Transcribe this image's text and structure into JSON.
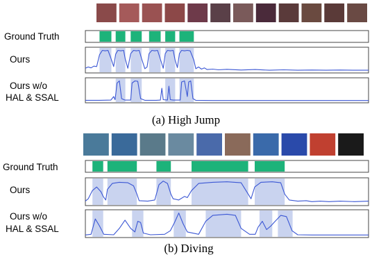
{
  "labels": {
    "ground_truth": "Ground Truth",
    "ours": "Ours",
    "ablation_line1": "Ours w/o",
    "ablation_line2": "HAL & SSAL"
  },
  "panels": [
    {
      "id": "high-jump",
      "caption": "(a) High Jump",
      "thumbnail_colors": [
        "#8a4a4a",
        "#a55a5a",
        "#9a5252",
        "#8c4848",
        "#6e3a4a",
        "#5a4048",
        "#7a5a5a",
        "#4a2a3a",
        "#5a3a3a",
        "#6a4a40",
        "#5a3a38",
        "#6a4a44"
      ],
      "ground_truth_segments": [
        [
          0.05,
          0.092
        ],
        [
          0.107,
          0.141
        ],
        [
          0.16,
          0.199
        ],
        [
          0.225,
          0.266
        ],
        [
          0.282,
          0.317
        ],
        [
          0.332,
          0.383
        ]
      ],
      "ours_highlight_segments": [
        [
          0.05,
          0.092
        ],
        [
          0.107,
          0.141
        ],
        [
          0.16,
          0.199
        ],
        [
          0.225,
          0.266
        ],
        [
          0.282,
          0.317
        ],
        [
          0.332,
          0.383
        ]
      ],
      "ours_curve": [
        [
          0,
          0.12
        ],
        [
          0.01,
          0.18
        ],
        [
          0.02,
          0.14
        ],
        [
          0.03,
          0.22
        ],
        [
          0.04,
          0.2
        ],
        [
          0.05,
          0.75
        ],
        [
          0.06,
          0.95
        ],
        [
          0.07,
          0.93
        ],
        [
          0.08,
          0.95
        ],
        [
          0.09,
          0.6
        ],
        [
          0.1,
          0.2
        ],
        [
          0.107,
          0.78
        ],
        [
          0.115,
          0.95
        ],
        [
          0.125,
          0.93
        ],
        [
          0.135,
          0.95
        ],
        [
          0.141,
          0.55
        ],
        [
          0.15,
          0.12
        ],
        [
          0.16,
          0.8
        ],
        [
          0.17,
          0.95
        ],
        [
          0.18,
          0.93
        ],
        [
          0.19,
          0.95
        ],
        [
          0.199,
          0.55
        ],
        [
          0.21,
          0.1
        ],
        [
          0.218,
          0.18
        ],
        [
          0.225,
          0.8
        ],
        [
          0.235,
          0.95
        ],
        [
          0.245,
          0.93
        ],
        [
          0.255,
          0.95
        ],
        [
          0.266,
          0.5
        ],
        [
          0.275,
          0.12
        ],
        [
          0.282,
          0.8
        ],
        [
          0.29,
          0.95
        ],
        [
          0.3,
          0.93
        ],
        [
          0.31,
          0.95
        ],
        [
          0.317,
          0.5
        ],
        [
          0.325,
          0.15
        ],
        [
          0.332,
          0.8
        ],
        [
          0.34,
          0.95
        ],
        [
          0.35,
          0.93
        ],
        [
          0.36,
          0.95
        ],
        [
          0.37,
          0.93
        ],
        [
          0.383,
          0.5
        ],
        [
          0.39,
          0.1
        ],
        [
          0.4,
          0.18
        ],
        [
          0.41,
          0.08
        ],
        [
          0.42,
          0.14
        ],
        [
          0.43,
          0.06
        ],
        [
          0.45,
          0.08
        ],
        [
          0.47,
          0.05
        ],
        [
          0.5,
          0.07
        ],
        [
          0.55,
          0.04
        ],
        [
          0.6,
          0.06
        ],
        [
          0.65,
          0.03
        ],
        [
          0.7,
          0.05
        ],
        [
          0.75,
          0.03
        ],
        [
          0.8,
          0.04
        ],
        [
          0.85,
          0.03
        ],
        [
          0.9,
          0.04
        ],
        [
          0.95,
          0.03
        ],
        [
          1,
          0.03
        ]
      ],
      "ablation_highlight_segments": [
        [
          0.107,
          0.141
        ],
        [
          0.16,
          0.199
        ],
        [
          0.282,
          0.317
        ],
        [
          0.332,
          0.383
        ]
      ],
      "ablation_curve": [
        [
          0,
          0.02
        ],
        [
          0.05,
          0.02
        ],
        [
          0.09,
          0.03
        ],
        [
          0.1,
          0.2
        ],
        [
          0.105,
          0.05
        ],
        [
          0.112,
          0.85
        ],
        [
          0.12,
          0.95
        ],
        [
          0.128,
          0.1
        ],
        [
          0.14,
          0.03
        ],
        [
          0.16,
          0.03
        ],
        [
          0.165,
          0.85
        ],
        [
          0.175,
          0.95
        ],
        [
          0.185,
          0.93
        ],
        [
          0.195,
          0.1
        ],
        [
          0.21,
          0.02
        ],
        [
          0.25,
          0.02
        ],
        [
          0.265,
          0.03
        ],
        [
          0.27,
          0.6
        ],
        [
          0.275,
          0.05
        ],
        [
          0.29,
          0.03
        ],
        [
          0.295,
          0.7
        ],
        [
          0.3,
          0.05
        ],
        [
          0.31,
          0.03
        ],
        [
          0.335,
          0.03
        ],
        [
          0.34,
          0.9
        ],
        [
          0.35,
          0.95
        ],
        [
          0.36,
          0.2
        ],
        [
          0.365,
          0.9
        ],
        [
          0.372,
          0.95
        ],
        [
          0.38,
          0.1
        ],
        [
          0.39,
          0.02
        ],
        [
          0.45,
          0.01
        ],
        [
          1,
          0.01
        ]
      ]
    },
    {
      "id": "diving",
      "caption": "(b) Diving",
      "thumbnail_colors": [
        "#4a7a9a",
        "#3a6a9a",
        "#5a7a8a",
        "#6a8aa0",
        "#4a6aaa",
        "#8a6a5a",
        "#3a6aaa",
        "#2a4aaa",
        "#c04030",
        "#1a1a1a"
      ],
      "ground_truth_segments": [
        [
          0.025,
          0.063
        ],
        [
          0.078,
          0.182
        ],
        [
          0.251,
          0.302
        ],
        [
          0.375,
          0.575
        ],
        [
          0.598,
          0.704
        ]
      ],
      "ours_highlight_segments": [
        [
          0.025,
          0.063
        ],
        [
          0.078,
          0.182
        ],
        [
          0.251,
          0.302
        ],
        [
          0.375,
          0.575
        ],
        [
          0.598,
          0.704
        ]
      ],
      "ours_curve": [
        [
          0,
          0.1
        ],
        [
          0.01,
          0.2
        ],
        [
          0.025,
          0.55
        ],
        [
          0.04,
          0.7
        ],
        [
          0.055,
          0.5
        ],
        [
          0.063,
          0.3
        ],
        [
          0.072,
          0.15
        ],
        [
          0.078,
          0.6
        ],
        [
          0.095,
          0.85
        ],
        [
          0.12,
          0.9
        ],
        [
          0.15,
          0.88
        ],
        [
          0.17,
          0.75
        ],
        [
          0.182,
          0.4
        ],
        [
          0.19,
          0.12
        ],
        [
          0.22,
          0.1
        ],
        [
          0.245,
          0.15
        ],
        [
          0.26,
          0.8
        ],
        [
          0.275,
          0.95
        ],
        [
          0.29,
          0.85
        ],
        [
          0.302,
          0.4
        ],
        [
          0.31,
          0.2
        ],
        [
          0.33,
          0.15
        ],
        [
          0.35,
          0.3
        ],
        [
          0.36,
          0.25
        ],
        [
          0.375,
          0.55
        ],
        [
          0.4,
          0.85
        ],
        [
          0.45,
          0.9
        ],
        [
          0.5,
          0.92
        ],
        [
          0.55,
          0.88
        ],
        [
          0.575,
          0.4
        ],
        [
          0.585,
          0.2
        ],
        [
          0.598,
          0.7
        ],
        [
          0.62,
          0.9
        ],
        [
          0.66,
          0.92
        ],
        [
          0.69,
          0.88
        ],
        [
          0.704,
          0.4
        ],
        [
          0.72,
          0.15
        ],
        [
          0.75,
          0.1
        ],
        [
          0.78,
          0.12
        ],
        [
          0.8,
          0.08
        ],
        [
          0.83,
          0.1
        ],
        [
          0.86,
          0.08
        ],
        [
          0.9,
          0.1
        ],
        [
          0.95,
          0.08
        ],
        [
          1,
          0.1
        ]
      ],
      "ablation_highlight_segments": [
        [
          0.025,
          0.063
        ],
        [
          0.165,
          0.205
        ],
        [
          0.312,
          0.355
        ],
        [
          0.425,
          0.55
        ],
        [
          0.615,
          0.66
        ],
        [
          0.68,
          0.732
        ]
      ],
      "ablation_curve": [
        [
          0,
          0.02
        ],
        [
          0.02,
          0.05
        ],
        [
          0.035,
          0.7
        ],
        [
          0.05,
          0.4
        ],
        [
          0.065,
          0.05
        ],
        [
          0.1,
          0.03
        ],
        [
          0.12,
          0.3
        ],
        [
          0.14,
          0.65
        ],
        [
          0.16,
          0.3
        ],
        [
          0.175,
          0.15
        ],
        [
          0.185,
          0.6
        ],
        [
          0.195,
          0.55
        ],
        [
          0.205,
          0.1
        ],
        [
          0.23,
          0.03
        ],
        [
          0.28,
          0.05
        ],
        [
          0.3,
          0.2
        ],
        [
          0.315,
          0.55
        ],
        [
          0.33,
          0.95
        ],
        [
          0.345,
          0.5
        ],
        [
          0.36,
          0.15
        ],
        [
          0.4,
          0.05
        ],
        [
          0.425,
          0.6
        ],
        [
          0.45,
          0.85
        ],
        [
          0.5,
          0.9
        ],
        [
          0.53,
          0.85
        ],
        [
          0.55,
          0.3
        ],
        [
          0.58,
          0.05
        ],
        [
          0.6,
          0.05
        ],
        [
          0.61,
          0.35
        ],
        [
          0.625,
          0.6
        ],
        [
          0.64,
          0.25
        ],
        [
          0.655,
          0.4
        ],
        [
          0.67,
          0.6
        ],
        [
          0.69,
          0.85
        ],
        [
          0.71,
          0.8
        ],
        [
          0.73,
          0.2
        ],
        [
          0.75,
          0.03
        ],
        [
          0.8,
          0.02
        ],
        [
          1,
          0.02
        ]
      ]
    }
  ]
}
